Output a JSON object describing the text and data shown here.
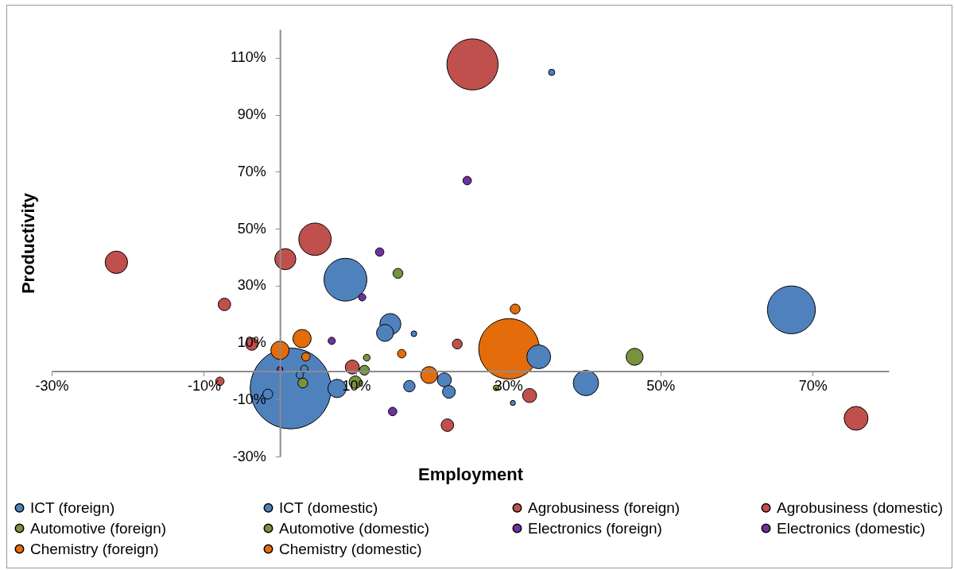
{
  "chart_data": {
    "type": "bubble",
    "xlabel": "Employment",
    "ylabel": "Productivity",
    "xlim": [
      -30,
      80
    ],
    "ylim": [
      -30,
      120
    ],
    "xticks": [
      {
        "value": -30,
        "label": "-30%"
      },
      {
        "value": -10,
        "label": "-10%"
      },
      {
        "value": 10,
        "label": "10%"
      },
      {
        "value": 30,
        "label": "30%"
      },
      {
        "value": 50,
        "label": "50%"
      },
      {
        "value": 70,
        "label": "70%"
      }
    ],
    "yticks": [
      {
        "value": -30,
        "label": "-30%"
      },
      {
        "value": -10,
        "label": "-10%"
      },
      {
        "value": 10,
        "label": "10%"
      },
      {
        "value": 30,
        "label": "30%"
      },
      {
        "value": 50,
        "label": "50%"
      },
      {
        "value": 70,
        "label": "70%"
      },
      {
        "value": 90,
        "label": "90%"
      },
      {
        "value": 110,
        "label": "110%"
      }
    ],
    "grid": false,
    "legend": "bottom",
    "series": [
      {
        "name": "ICT (foreign)",
        "color": "#4f81bd",
        "x": [
          1.4,
          8.6,
          67.2,
          34.0,
          17.0,
          21.6
        ],
        "values": [
          -6.1,
          32.1,
          21.5,
          5.0,
          -5.3,
          -3.1
        ],
        "sizes": [
          1,
          0.28,
          0.35,
          0.087,
          0.02,
          0.03
        ]
      },
      {
        "name": "ICT (domestic)",
        "color": "#4f81bd",
        "x": [
          14.5,
          13.8,
          17.6,
          7.5,
          22.2,
          40.2,
          30.6,
          -1.6,
          3.2,
          2.6,
          35.7
        ],
        "values": [
          16.5,
          13.4,
          13.1,
          -6.1,
          -7.3,
          -4.2,
          -11.2,
          -8.1,
          0.8,
          -1.4,
          104.9
        ],
        "sizes": [
          0.068,
          0.044,
          0.005,
          0.051,
          0.025,
          0.098,
          0.004,
          0.015,
          0.008,
          0.008,
          0.006
        ]
      },
      {
        "name": "Agrobusiness (foreign)",
        "color": "#c0504d",
        "x": [
          25.3,
          75.7
        ],
        "values": [
          107.7,
          -16.6
        ],
        "sizes": [
          0.4,
          0.087
        ]
      },
      {
        "name": "Agrobusiness (domestic)",
        "color": "#c0504d",
        "x": [
          -21.5,
          4.6,
          0.7,
          -7.3,
          -3.7,
          -7.9,
          9.5,
          23.3,
          32.8,
          22.0
        ],
        "values": [
          38.2,
          46.3,
          39.3,
          23.4,
          9.5,
          -3.6,
          1.4,
          9.5,
          -8.6,
          -19.0
        ],
        "sizes": [
          0.077,
          0.16,
          0.068,
          0.024,
          0.024,
          0.011,
          0.03,
          0.015,
          0.03,
          0.024
        ]
      },
      {
        "name": "Automotive (foreign)",
        "color": "#77933c",
        "x": [
          15.5,
          46.6,
          28.4
        ],
        "values": [
          34.3,
          5.0,
          -5.9
        ],
        "sizes": [
          0.015,
          0.044,
          0.005
        ]
      },
      {
        "name": "Automotive (domestic)",
        "color": "#77933c",
        "x": [
          11.4,
          11.1,
          9.9,
          3.0
        ],
        "values": [
          4.7,
          0.3,
          -3.9,
          -4.2
        ],
        "sizes": [
          0.007,
          0.015,
          0.024,
          0.015
        ]
      },
      {
        "name": "Electronics (foreign)",
        "color": "#7030a0",
        "x": [
          24.6,
          13.1,
          14.8
        ],
        "values": [
          66.9,
          41.8,
          -14.2
        ],
        "sizes": [
          0.011,
          0.011,
          0.011
        ]
      },
      {
        "name": "Electronics (domestic)",
        "color": "#7030a0",
        "x": [
          10.8,
          6.8,
          0
        ],
        "values": [
          25.9,
          10.6,
          0.6
        ],
        "sizes": [
          0.008,
          0.008,
          0.005
        ]
      },
      {
        "name": "Chemistry (foreign)",
        "color": "#e46c0a",
        "x": [
          2.9
        ],
        "values": [
          11.4
        ],
        "sizes": [
          0.051
        ]
      },
      {
        "name": "Chemistry (domestic)",
        "color": "#e46c0a",
        "x": [
          30.1,
          0,
          3.4,
          19.6,
          16.0,
          30.9
        ],
        "values": [
          7.8,
          7.3,
          5.0,
          -1.4,
          6.1,
          21.8
        ],
        "sizes": [
          0.56,
          0.051,
          0.011,
          0.044,
          0.011,
          0.015
        ]
      }
    ]
  }
}
